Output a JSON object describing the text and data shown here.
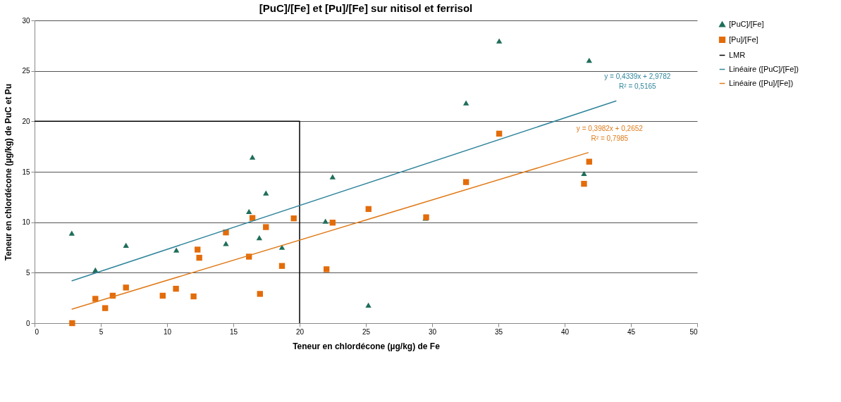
{
  "chart_data": {
    "type": "scatter",
    "title": "[PuC]/[Fe] et [Pu]/[Fe] sur nitisol et ferrisol",
    "xlabel": "Teneur en chlordécone (µg/kg) de Fe",
    "ylabel": "Teneur en chlordécone (µg/kg) de PuC et Pu",
    "xlim": [
      0,
      50
    ],
    "xticks": [
      0,
      5,
      10,
      15,
      20,
      25,
      30,
      35,
      40,
      45,
      50
    ],
    "ylim": [
      0,
      30
    ],
    "yticks": [
      0,
      5,
      10,
      15,
      20,
      25,
      30
    ],
    "grid": "y",
    "legend": "right",
    "series": [
      {
        "name": "[PuC]/[Fe]",
        "marker": "triangle",
        "color": "#1f6e5a",
        "x": [
          2.81,
          4.59,
          6.9,
          10.7,
          14.44,
          16.18,
          16.44,
          16.96,
          17.46,
          18.67,
          21.95,
          22.49,
          25.19,
          29.5,
          32.56,
          35.06,
          41.46,
          41.85
        ],
        "values": [
          8.92,
          5.27,
          7.71,
          7.24,
          7.89,
          11.07,
          16.46,
          8.47,
          12.89,
          7.52,
          10.1,
          14.51,
          1.79,
          10.4,
          21.82,
          27.97,
          14.83,
          26.05
        ]
      },
      {
        "name": "[Pu]/[Fe]",
        "marker": "square",
        "color": "#e36c0a",
        "x": [
          2.84,
          4.59,
          5.33,
          5.9,
          6.9,
          9.67,
          10.67,
          12.0,
          12.3,
          12.43,
          14.44,
          16.18,
          16.44,
          17.01,
          17.46,
          18.67,
          19.56,
          22.03,
          22.49,
          25.2,
          29.55,
          32.56,
          35.06,
          41.46,
          41.85
        ],
        "values": [
          0,
          2.41,
          1.49,
          2.72,
          3.53,
          2.72,
          3.41,
          2.65,
          7.29,
          6.48,
          8.99,
          6.59,
          10.42,
          2.9,
          9.52,
          5.67,
          10.38,
          5.34,
          9.96,
          11.31,
          10.49,
          13.98,
          18.78,
          13.81,
          16.0
        ]
      },
      {
        "name": "LMR",
        "type": "line",
        "marker": "none",
        "color": "#000000",
        "x": [
          0,
          20,
          20
        ],
        "values": [
          20,
          20,
          0
        ]
      },
      {
        "name": "Linéaire ([PuC]/[Fe])",
        "type": "line",
        "marker": "none",
        "color": "#31859c",
        "x": [
          2.8,
          43.9
        ],
        "values": [
          4.19,
          22.03
        ]
      },
      {
        "name": "Linéaire ([Pu]/[Fe])",
        "type": "line",
        "marker": "none",
        "color": "#e07b1a",
        "x": [
          2.8,
          41.8
        ],
        "values": [
          1.38,
          16.91
        ]
      }
    ],
    "annotations": [
      "y = 0,4339x + 2,9782",
      "R² = 0,5165",
      "y = 0,3982x + 0,2652",
      "R² = 0,7985"
    ]
  }
}
